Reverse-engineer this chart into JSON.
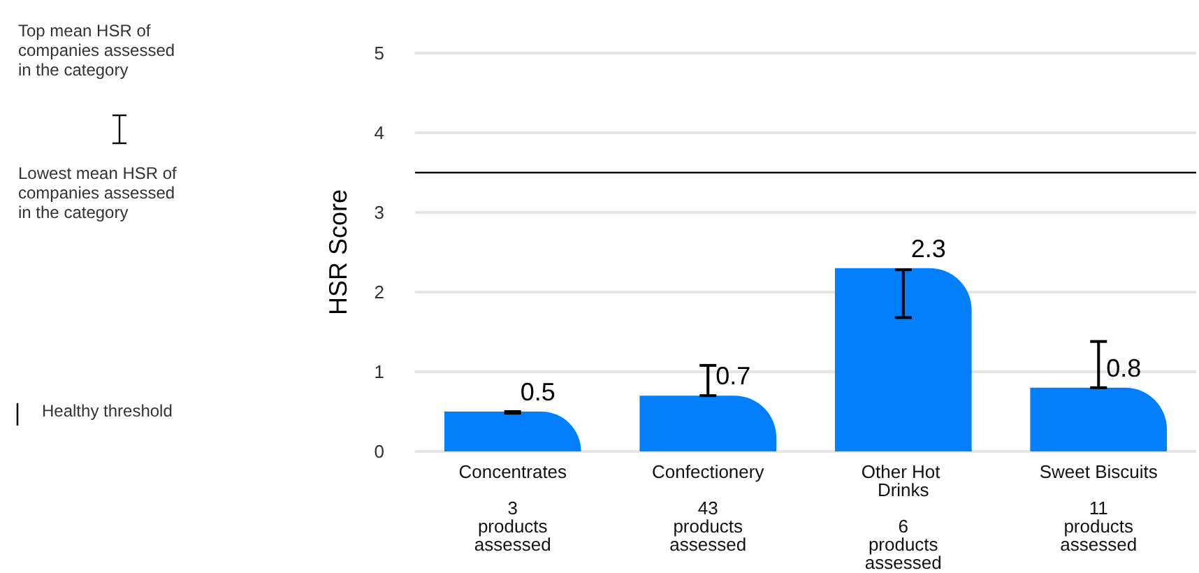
{
  "chart_data": {
    "type": "bar",
    "ylabel": "HSR Score",
    "categories": [
      "Concentrates",
      "Confectionery",
      "Other Hot Drinks",
      "Sweet Biscuits"
    ],
    "values": [
      0.5,
      0.7,
      2.3,
      0.8
    ],
    "color": "#037ffc",
    "errors": [
      [
        0.48,
        0.5
      ],
      [
        0.7,
        1.08
      ],
      [
        1.68,
        2.28
      ],
      [
        0.8,
        1.38
      ]
    ],
    "data_labels": true,
    "ylim": [
      0,
      5
    ],
    "yticks": [
      0,
      1,
      2,
      3,
      4,
      5
    ],
    "grid": "y",
    "ref_lines": [
      {
        "axis": "y",
        "value": 3.5,
        "label": "Healthy threshold",
        "color": "#000000"
      }
    ],
    "annotations": [
      "Top mean HSR of companies assessed in the category",
      "Lowest mean HSR of companies assessed in the category",
      "3 products assessed",
      "43 products assessed",
      "6 products assessed",
      "11 products assessed"
    ]
  }
}
